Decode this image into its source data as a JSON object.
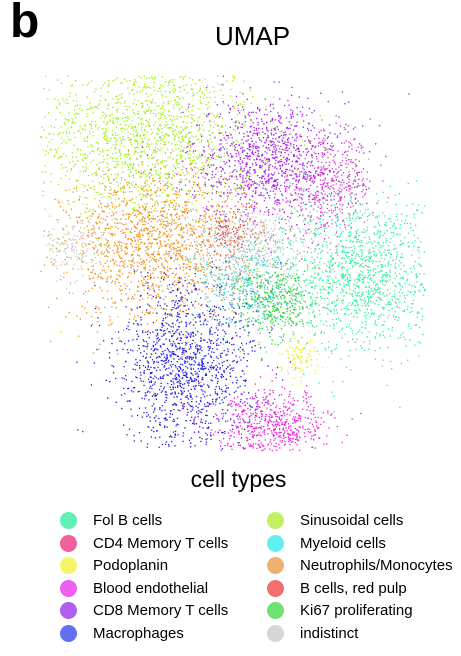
{
  "panel_letter": "b",
  "chart_data": {
    "type": "scatter",
    "title": "UMAP",
    "xlabel": "",
    "ylabel": "",
    "legend_title": "cell types",
    "legend_placement": "bottom",
    "grid": false,
    "axes_visible": false,
    "categories": [
      {
        "name": "Fol B cells",
        "color": "#5ef0b4"
      },
      {
        "name": "CD4 Memory T cells",
        "color": "#f0609c"
      },
      {
        "name": "Podoplanin",
        "color": "#f5f56a"
      },
      {
        "name": "Blood endothelial",
        "color": "#f060f0"
      },
      {
        "name": "CD8 Memory T cells",
        "color": "#b05ef0"
      },
      {
        "name": "Macrophages",
        "color": "#6070f0"
      },
      {
        "name": "Sinusoidal cells",
        "color": "#c2f060"
      },
      {
        "name": "Myeloid cells",
        "color": "#60f0f0"
      },
      {
        "name": "Neutrophils/Monocytes",
        "color": "#f0b070"
      },
      {
        "name": "B cells, red pulp",
        "color": "#f07070"
      },
      {
        "name": "Ki67 proliferating",
        "color": "#70e070"
      },
      {
        "name": "indistinct",
        "color": "#d6d6d6"
      }
    ],
    "clusters": [
      {
        "category": "Sinusoidal cells",
        "color": "#9ef014",
        "cx": -1.6,
        "cy": 2.55,
        "sx": 1.05,
        "sy": 0.9,
        "n": 1700
      },
      {
        "category": "CD8 Memory T cells",
        "color": "#a81ef0",
        "cx": 0.75,
        "cy": 2.05,
        "sx": 0.75,
        "sy": 0.6,
        "n": 1100
      },
      {
        "category": "CD4 Memory T cells",
        "color": "#d63cc8",
        "cx": 1.9,
        "cy": 1.6,
        "sx": 0.45,
        "sy": 0.45,
        "n": 450
      },
      {
        "category": "Neutrophils/Monocytes",
        "color": "#f0901c",
        "cx": -1.4,
        "cy": 0.45,
        "sx": 0.85,
        "sy": 0.75,
        "n": 1500
      },
      {
        "category": "Fol B cells",
        "color": "#2ef0a0",
        "cx": 2.55,
        "cy": -0.1,
        "sx": 0.75,
        "sy": 0.75,
        "n": 1300
      },
      {
        "category": "Myeloid cells",
        "color": "#3cc8c8",
        "cx": 0.35,
        "cy": -0.3,
        "sx": 0.5,
        "sy": 0.45,
        "n": 500
      },
      {
        "category": "Ki67 proliferating",
        "color": "#28d228",
        "cx": 0.95,
        "cy": -0.65,
        "sx": 0.35,
        "sy": 0.35,
        "n": 350
      },
      {
        "category": "Macrophages",
        "color": "#1e1ee6",
        "cx": -0.8,
        "cy": -1.85,
        "sx": 0.65,
        "sy": 0.8,
        "n": 1300
      },
      {
        "category": "Blood endothelial",
        "color": "#f01edc",
        "cx": 0.85,
        "cy": -3.05,
        "sx": 0.55,
        "sy": 0.35,
        "n": 650
      },
      {
        "category": "B cells, red pulp",
        "color": "#e64646",
        "cx": 0.1,
        "cy": 0.75,
        "sx": 0.3,
        "sy": 0.25,
        "n": 150
      },
      {
        "category": "Podoplanin",
        "color": "#e6f01e",
        "cx": 1.35,
        "cy": -1.75,
        "sx": 0.2,
        "sy": 0.2,
        "n": 100
      },
      {
        "category": "indistinct",
        "color": "#c8c8c8",
        "cx": -3.0,
        "cy": 0.45,
        "sx": 0.3,
        "sy": 0.3,
        "n": 180
      },
      {
        "category": "indistinct",
        "color": "#c8c8c8",
        "cx": 0.55,
        "cy": 0.5,
        "sx": 0.55,
        "sy": 0.35,
        "n": 350
      }
    ]
  }
}
